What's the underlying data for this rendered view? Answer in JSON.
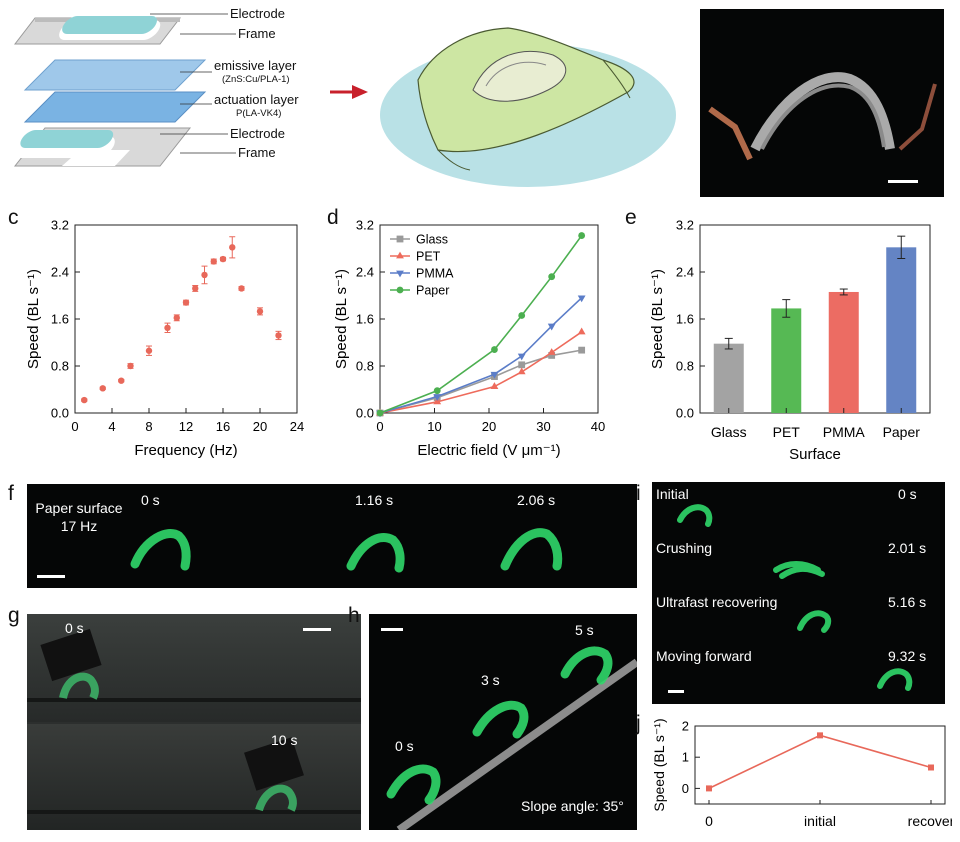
{
  "panel_a": {
    "layer_labels": [
      "Electrode",
      "Frame",
      "emissive layer",
      "actuation layer",
      "Electrode",
      "Frame"
    ],
    "layer_sublabels": [
      "(ZnS:Cu/PLA-1)",
      "P(LA-VK4)"
    ]
  },
  "panel_f": {
    "letter": "f",
    "surface_label": "Paper surface",
    "freq_label": "17 Hz",
    "times": [
      "0 s",
      "1.16 s",
      "2.06 s"
    ]
  },
  "panel_g": {
    "letter": "g",
    "times": [
      "0 s",
      "10 s"
    ]
  },
  "panel_h": {
    "letter": "h",
    "times": [
      "0 s",
      "3 s",
      "5 s"
    ],
    "slope_label": "Slope angle: 35°"
  },
  "panel_i": {
    "letter": "i",
    "stages": [
      {
        "label": "Initial",
        "time": "0 s"
      },
      {
        "label": "Crushing",
        "time": "2.01 s"
      },
      {
        "label": "Ultrafast recovering",
        "time": "5.16 s"
      },
      {
        "label": "Moving forward",
        "time": "9.32 s"
      }
    ]
  },
  "chart_data": [
    {
      "panel": "c",
      "type": "scatter",
      "xlabel": "Frequency (Hz)",
      "ylabel": "Speed (BL s⁻¹)",
      "xlim": [
        0,
        24
      ],
      "ylim": [
        0,
        3.2
      ],
      "xticks": [
        0,
        4,
        8,
        12,
        16,
        20,
        24
      ],
      "yticks": [
        0.0,
        0.8,
        1.6,
        2.4,
        3.2
      ],
      "ytick_labels": [
        "0.0",
        "0.8",
        "1.6",
        "2.4",
        "3.2"
      ],
      "color": "#e8685a",
      "x": [
        1,
        3,
        5,
        6,
        8,
        10,
        11,
        12,
        13,
        14,
        15,
        16,
        17,
        18,
        20,
        22
      ],
      "y": [
        0.22,
        0.42,
        0.55,
        0.8,
        1.06,
        1.45,
        1.62,
        1.88,
        2.12,
        2.35,
        2.58,
        2.62,
        2.82,
        2.12,
        1.73,
        1.32
      ],
      "err": [
        0.02,
        0.02,
        0.02,
        0.04,
        0.08,
        0.08,
        0.05,
        0.04,
        0.05,
        0.15,
        0.04,
        0.03,
        0.18,
        0.03,
        0.06,
        0.07
      ]
    },
    {
      "panel": "d",
      "type": "line",
      "xlabel": "Electric field (V μm⁻¹)",
      "ylabel": "Speed (BL s⁻¹)",
      "xlim": [
        0,
        40
      ],
      "ylim": [
        0,
        3.2
      ],
      "xticks": [
        0,
        10,
        20,
        30,
        40
      ],
      "yticks": [
        0.0,
        0.8,
        1.6,
        2.4,
        3.2
      ],
      "ytick_labels": [
        "0.0",
        "0.8",
        "1.6",
        "2.4",
        "3.2"
      ],
      "legend_position": "top-left",
      "x": [
        0,
        10.5,
        21,
        26,
        31.5,
        37
      ],
      "series": [
        {
          "name": "Glass",
          "marker": "square",
          "color": "#9a9a9a",
          "values": [
            0,
            0.26,
            0.62,
            0.82,
            0.98,
            1.07
          ]
        },
        {
          "name": "PET",
          "marker": "triangle-up",
          "color": "#ee6b5c",
          "values": [
            0,
            0.19,
            0.45,
            0.7,
            1.03,
            1.38
          ]
        },
        {
          "name": "PMMA",
          "marker": "triangle-down",
          "color": "#5b7dc8",
          "values": [
            0,
            0.28,
            0.66,
            0.97,
            1.48,
            1.96
          ]
        },
        {
          "name": "Paper",
          "marker": "circle",
          "color": "#4caf50",
          "values": [
            0,
            0.38,
            1.08,
            1.66,
            2.32,
            3.02
          ]
        }
      ]
    },
    {
      "panel": "e",
      "type": "bar",
      "xlabel": "Surface",
      "ylabel": "Speed (BL s⁻¹)",
      "ylim": [
        0,
        3.2
      ],
      "yticks": [
        0.0,
        0.8,
        1.6,
        2.4,
        3.2
      ],
      "ytick_labels": [
        "0.0",
        "0.8",
        "1.6",
        "2.4",
        "3.2"
      ],
      "categories": [
        "Glass",
        "PET",
        "PMMA",
        "Paper"
      ],
      "values": [
        1.18,
        1.78,
        2.06,
        2.82
      ],
      "err": [
        0.09,
        0.15,
        0.05,
        0.19
      ],
      "colors": [
        "#a3a3a3",
        "#56b954",
        "#ec6c63",
        "#6484c4"
      ]
    },
    {
      "panel": "j",
      "type": "line",
      "ylabel": "Speed (BL s⁻¹)",
      "ylim": [
        -0.5,
        2
      ],
      "yticks": [
        0,
        1,
        2
      ],
      "ytick_labels": [
        "0",
        "1",
        "2"
      ],
      "categories": [
        "0",
        "initial",
        "recover"
      ],
      "color": "#e8685a",
      "values": [
        0,
        1.7,
        0.67
      ]
    }
  ]
}
